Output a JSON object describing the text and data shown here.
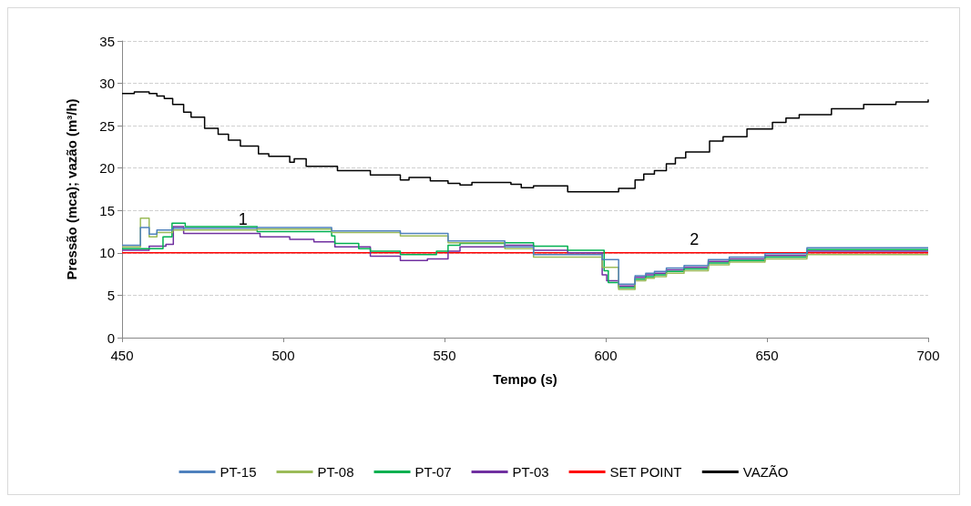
{
  "chart_data": {
    "type": "step",
    "xlabel": "Tempo (s)",
    "ylabel": "Pressão (mca); vazão (m³/h)",
    "xlim": [
      450,
      700
    ],
    "xticks": [
      450,
      500,
      550,
      600,
      650,
      700
    ],
    "ylim": [
      0,
      35
    ],
    "yticks": [
      0,
      5,
      10,
      15,
      20,
      25,
      30,
      35
    ],
    "grid": "y",
    "legend": "bottom",
    "marker": "none",
    "line_style": "solid",
    "annotations": [
      "1",
      "2"
    ],
    "series": [
      {
        "name": "PT-15",
        "color": "#4f81bd",
        "x": [
          450,
          455.7,
          458.4,
          460.8,
          465.7,
          491.9,
          515,
          536.3,
          551.1,
          568.7,
          577.6,
          598.9,
          604,
          609.1,
          612.4,
          615.1,
          618.8,
          624.3,
          631.8,
          638.3,
          649.4,
          662.4,
          700
        ],
        "values": [
          10.9,
          13.0,
          12.2,
          12.7,
          12.9,
          13.0,
          12.6,
          12.3,
          11.4,
          10.7,
          9.8,
          9.2,
          6.3,
          7.3,
          7.6,
          7.8,
          8.2,
          8.5,
          9.2,
          9.5,
          9.9,
          10.6,
          10.6
        ]
      },
      {
        "name": "PT-08",
        "color": "#9bbb59",
        "x": [
          450,
          455.7,
          458.4,
          460.8,
          465.7,
          491.9,
          515,
          536.3,
          551.1,
          568.7,
          577.6,
          598.9,
          604,
          609.1,
          612.4,
          615.1,
          618.8,
          624.3,
          631.8,
          638.3,
          649.4,
          662.4,
          700
        ],
        "values": [
          10.7,
          14.1,
          11.9,
          12.4,
          12.7,
          12.8,
          12.4,
          12.0,
          11.2,
          10.5,
          9.5,
          8.3,
          5.7,
          6.7,
          7.0,
          7.2,
          7.6,
          7.9,
          8.6,
          8.9,
          9.3,
          9.8,
          9.8
        ]
      },
      {
        "name": "PT-07",
        "color": "#00b050",
        "x": [
          450,
          462.7,
          465.5,
          469.6,
          491.9,
          515,
          516,
          523.4,
          527,
          536.3,
          547.5,
          551.1,
          554.8,
          568.7,
          577.6,
          588.2,
          599.5,
          600.8,
          604,
          609.1,
          612.4,
          615.1,
          618.8,
          624.3,
          631.8,
          638.3,
          649.4,
          662.4,
          700
        ],
        "values": [
          10.5,
          11.9,
          13.5,
          13.1,
          12.5,
          12.0,
          11.1,
          10.5,
          10.2,
          9.8,
          10.2,
          10.9,
          11.1,
          11.2,
          10.8,
          10.3,
          7.9,
          6.5,
          5.9,
          6.9,
          7.2,
          7.4,
          7.8,
          8.1,
          8.8,
          9.1,
          9.5,
          10.4,
          10.4
        ]
      },
      {
        "name": "PT-03",
        "color": "#7030a0",
        "x": [
          450,
          458.4,
          463.6,
          465.9,
          469.1,
          492.8,
          502,
          509.5,
          516,
          527,
          536.3,
          544.7,
          551.1,
          554.8,
          568.7,
          577.6,
          588.2,
          598.9,
          600.3,
          604,
          609.1,
          612.4,
          615.1,
          618.8,
          624.3,
          631.8,
          638.3,
          649.4,
          662.4,
          700
        ],
        "values": [
          10.3,
          10.8,
          11.0,
          13.1,
          12.3,
          11.9,
          11.6,
          11.3,
          10.7,
          9.6,
          9.1,
          9.3,
          10.2,
          10.7,
          10.9,
          10.3,
          10.0,
          7.4,
          6.7,
          6.1,
          7.1,
          7.4,
          7.6,
          8.0,
          8.3,
          9.0,
          9.3,
          9.7,
          10.2,
          10.2
        ]
      },
      {
        "name": "SET POINT",
        "color": "#ff0000",
        "x": [
          450,
          700
        ],
        "values": [
          10,
          10
        ]
      },
      {
        "name": "VAZÃO",
        "color": "#000000",
        "x": [
          450,
          453.8,
          458.4,
          460.8,
          463.1,
          465.7,
          469.1,
          471.4,
          475.6,
          479.8,
          483,
          486.7,
          492.3,
          495.5,
          502,
          503.4,
          507.1,
          516.8,
          527,
          536.3,
          539,
          545.6,
          551.1,
          554.8,
          558.5,
          570.6,
          573.8,
          577.6,
          588.2,
          604,
          609.1,
          611.8,
          615.1,
          618.8,
          621.6,
          624.8,
          632.2,
          636.4,
          643.8,
          651.7,
          655.9,
          660,
          670,
          680,
          690,
          700
        ],
        "values": [
          28.8,
          29.0,
          28.8,
          28.5,
          28.2,
          27.5,
          26.6,
          26.0,
          24.7,
          24.0,
          23.3,
          22.6,
          21.7,
          21.4,
          20.7,
          21.1,
          20.2,
          19.7,
          19.2,
          18.6,
          18.9,
          18.5,
          18.2,
          18.0,
          18.3,
          18.1,
          17.7,
          17.9,
          17.2,
          17.6,
          18.6,
          19.3,
          19.7,
          20.5,
          21.2,
          21.9,
          23.2,
          23.7,
          24.6,
          25.4,
          25.9,
          26.3,
          27.0,
          27.5,
          27.8,
          28.1
        ]
      }
    ]
  }
}
